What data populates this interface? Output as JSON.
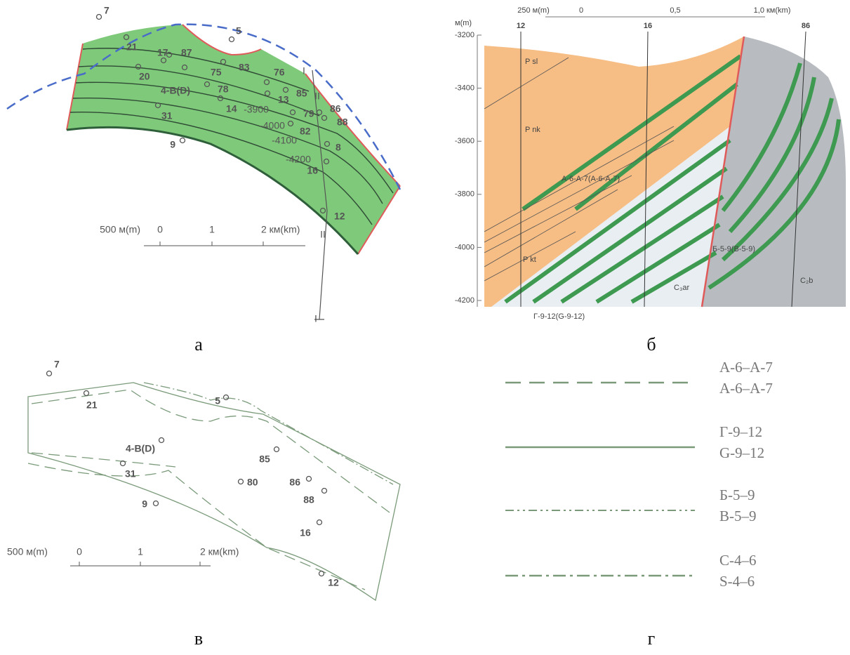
{
  "panel_a": {
    "caption": "а",
    "wells": [
      "7",
      "5",
      "21",
      "17",
      "87",
      "20",
      "75",
      "83",
      "76",
      "4-B(D)",
      "78",
      "85",
      "13",
      "14",
      "79",
      "86",
      "31",
      "88",
      "82",
      "9",
      "8",
      "16",
      "12"
    ],
    "contours": [
      "-3900",
      "-4000",
      "-4100",
      "-4200"
    ],
    "section_labels": [
      "I",
      "II",
      "II",
      "I"
    ],
    "scale": [
      "500 м(m)",
      "0",
      "1",
      "2 км(km)"
    ]
  },
  "panel_b": {
    "caption": "б",
    "y_unit": "м(m)",
    "yticks": [
      "-3200",
      "-3400",
      "-3600",
      "-3800",
      "-4000",
      "-4200"
    ],
    "top_scale": [
      "250 м(m)",
      "0",
      "0,5",
      "1,0 км(km)"
    ],
    "wells": [
      "12",
      "16",
      "86"
    ],
    "labels": [
      "P sl",
      "P nk",
      "А-6-А-7(A-6-A-7)",
      "P kt",
      "Б-5-9(B-5-9)",
      "C₃ar",
      "C₂b",
      "Г-9-12(G-9-12)"
    ]
  },
  "panel_c": {
    "caption": "в",
    "wells": [
      "7",
      "21",
      "5",
      "4-B(D)",
      "31",
      "85",
      "80",
      "86",
      "88",
      "9",
      "16",
      "12"
    ],
    "scale": [
      "500 м(m)",
      "0",
      "1",
      "2 км(km)"
    ]
  },
  "panel_d": {
    "caption": "г",
    "legend": [
      {
        "line1": "А-6–А-7",
        "line2": "A-6–A-7"
      },
      {
        "line1": "Г-9–12",
        "line2": "G-9–12"
      },
      {
        "line1": "Б-5–9",
        "line2": "B-5–9"
      },
      {
        "line1": "С-4–6",
        "line2": "S-4–6"
      }
    ]
  }
}
